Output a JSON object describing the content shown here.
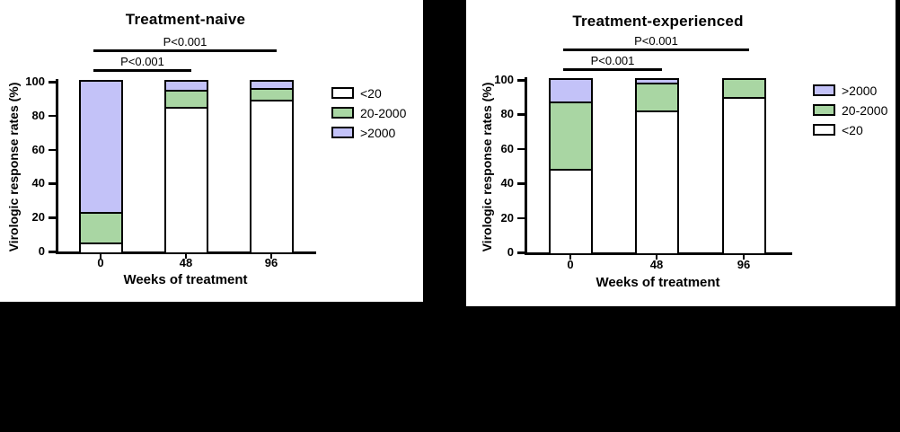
{
  "figure": {
    "background": "#000000",
    "panel_background": "#ffffff",
    "accent_colors": {
      "lt20": "#ffffff",
      "mid20_2000": "#a9d6a3",
      "gt2000": "#c3c2f8"
    }
  },
  "chart_data": [
    {
      "type": "bar",
      "stacked": true,
      "title": "Treatment-naive",
      "xlabel": "Weeks of treatment",
      "ylabel": "Virologic response rates (%)",
      "categories": [
        "0",
        "48",
        "96"
      ],
      "ylim": [
        0,
        100
      ],
      "yticks": [
        0,
        20,
        40,
        60,
        80,
        100
      ],
      "grid": false,
      "legend_position": "right",
      "series": [
        {
          "name": "<20",
          "color": "#ffffff",
          "values": [
            5,
            85,
            89
          ]
        },
        {
          "name": "20-2000",
          "color": "#a9d6a3",
          "values": [
            18,
            10,
            7
          ]
        },
        {
          "name": ">2000",
          "color": "#c3c2f8",
          "values": [
            77,
            5,
            4
          ]
        }
      ],
      "legend_order": [
        "<20",
        "20-2000",
        ">2000"
      ],
      "annotations": [
        {
          "text": "P<0.001",
          "from": "0",
          "to": "48",
          "level": 1
        },
        {
          "text": "P<0.001",
          "from": "0",
          "to": "96",
          "level": 2
        }
      ]
    },
    {
      "type": "bar",
      "stacked": true,
      "title": "Treatment-experienced",
      "xlabel": "Weeks of treatment",
      "ylabel": "Virologic response rates (%)",
      "categories": [
        "0",
        "48",
        "96"
      ],
      "ylim": [
        0,
        100
      ],
      "yticks": [
        0,
        20,
        40,
        60,
        80,
        100
      ],
      "grid": false,
      "legend_position": "right",
      "series": [
        {
          "name": "<20",
          "color": "#ffffff",
          "values": [
            48,
            82,
            90
          ]
        },
        {
          "name": "20-2000",
          "color": "#a9d6a3",
          "values": [
            39,
            16,
            10
          ]
        },
        {
          "name": ">2000",
          "color": "#c3c2f8",
          "values": [
            13,
            2,
            0
          ]
        }
      ],
      "legend_order": [
        ">2000",
        "20-2000",
        "<20"
      ],
      "annotations": [
        {
          "text": "P<0.001",
          "from": "0",
          "to": "48",
          "level": 1
        },
        {
          "text": "P<0.001",
          "from": "0",
          "to": "96",
          "level": 2
        }
      ]
    }
  ]
}
